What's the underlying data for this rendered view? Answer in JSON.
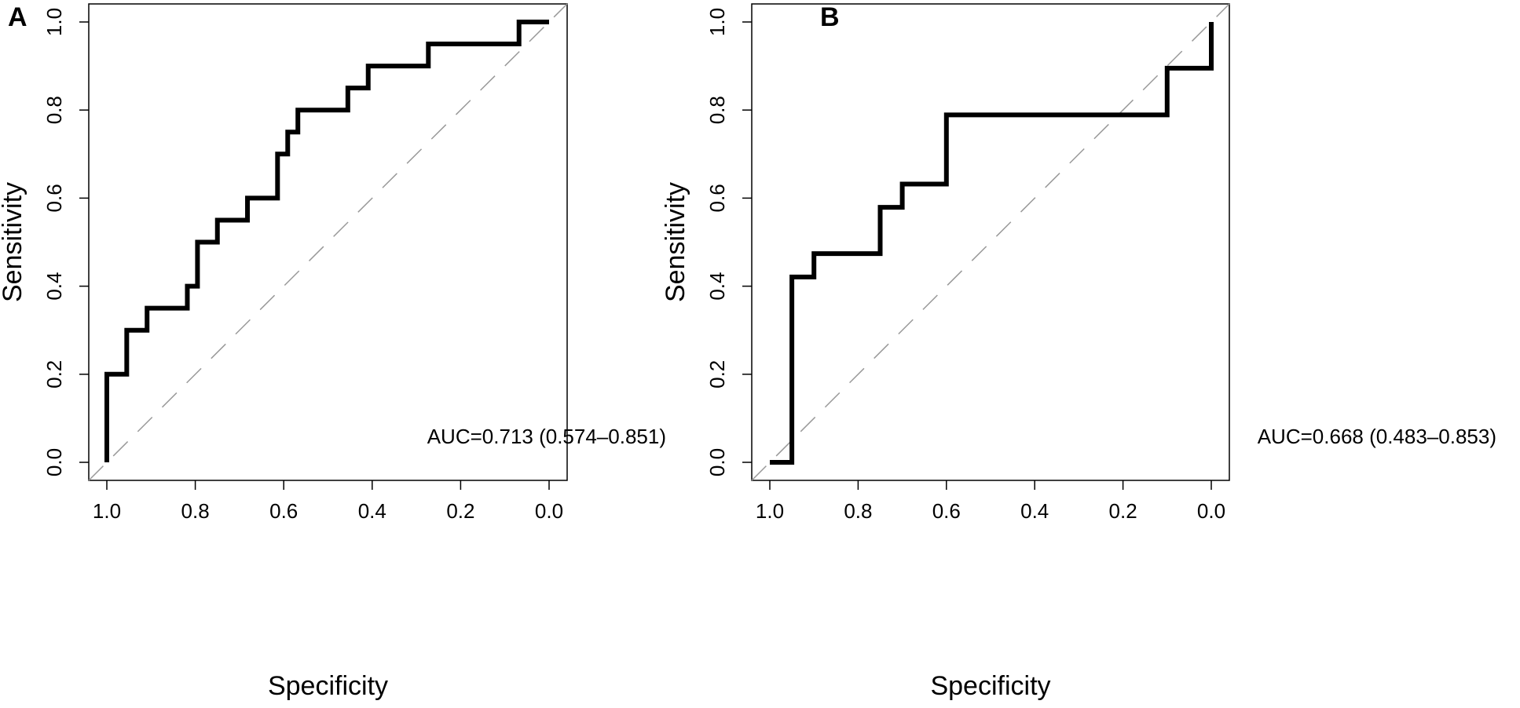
{
  "chart_data": [
    {
      "type": "line",
      "panel": "A",
      "title": "",
      "xlabel": "Specificity",
      "ylabel": "Sensitivity",
      "xlim": [
        1.0,
        0.0
      ],
      "ylim": [
        0.0,
        1.0
      ],
      "x_reversed": true,
      "xticks": [
        "1.0",
        "0.8",
        "0.6",
        "0.4",
        "0.2",
        "0.0"
      ],
      "yticks": [
        "0.0",
        "0.2",
        "0.4",
        "0.6",
        "0.8",
        "1.0"
      ],
      "grid": false,
      "reference_line": "diagonal (dashed, gray)",
      "annotation": "AUC=0.713 (0.574–0.851)",
      "series": [
        {
          "name": "ROC",
          "points": [
            {
              "specificity": 1.0,
              "sensitivity": 0.0
            },
            {
              "specificity": 1.0,
              "sensitivity": 0.2
            },
            {
              "specificity": 0.955,
              "sensitivity": 0.2
            },
            {
              "specificity": 0.955,
              "sensitivity": 0.3
            },
            {
              "specificity": 0.909,
              "sensitivity": 0.3
            },
            {
              "specificity": 0.909,
              "sensitivity": 0.35
            },
            {
              "specificity": 0.818,
              "sensitivity": 0.35
            },
            {
              "specificity": 0.818,
              "sensitivity": 0.4
            },
            {
              "specificity": 0.795,
              "sensitivity": 0.4
            },
            {
              "specificity": 0.795,
              "sensitivity": 0.5
            },
            {
              "specificity": 0.75,
              "sensitivity": 0.5
            },
            {
              "specificity": 0.75,
              "sensitivity": 0.55
            },
            {
              "specificity": 0.682,
              "sensitivity": 0.55
            },
            {
              "specificity": 0.682,
              "sensitivity": 0.6
            },
            {
              "specificity": 0.614,
              "sensitivity": 0.6
            },
            {
              "specificity": 0.614,
              "sensitivity": 0.7
            },
            {
              "specificity": 0.591,
              "sensitivity": 0.7
            },
            {
              "specificity": 0.591,
              "sensitivity": 0.75
            },
            {
              "specificity": 0.568,
              "sensitivity": 0.75
            },
            {
              "specificity": 0.568,
              "sensitivity": 0.8
            },
            {
              "specificity": 0.455,
              "sensitivity": 0.8
            },
            {
              "specificity": 0.455,
              "sensitivity": 0.85
            },
            {
              "specificity": 0.409,
              "sensitivity": 0.85
            },
            {
              "specificity": 0.409,
              "sensitivity": 0.9
            },
            {
              "specificity": 0.273,
              "sensitivity": 0.9
            },
            {
              "specificity": 0.273,
              "sensitivity": 0.95
            },
            {
              "specificity": 0.068,
              "sensitivity": 0.95
            },
            {
              "specificity": 0.068,
              "sensitivity": 1.0
            },
            {
              "specificity": 0.0,
              "sensitivity": 1.0
            }
          ]
        }
      ]
    },
    {
      "type": "line",
      "panel": "B",
      "title": "",
      "xlabel": "Specificity",
      "ylabel": "Sensitivity",
      "xlim": [
        1.0,
        0.0
      ],
      "ylim": [
        0.0,
        1.0
      ],
      "x_reversed": true,
      "xticks": [
        "1.0",
        "0.8",
        "0.6",
        "0.4",
        "0.2",
        "0.0"
      ],
      "yticks": [
        "0.0",
        "0.2",
        "0.4",
        "0.6",
        "0.8",
        "1.0"
      ],
      "grid": false,
      "reference_line": "diagonal (dashed, gray)",
      "annotation": "AUC=0.668 (0.483–0.853)",
      "series": [
        {
          "name": "ROC",
          "points": [
            {
              "specificity": 1.0,
              "sensitivity": 0.0
            },
            {
              "specificity": 0.95,
              "sensitivity": 0.0
            },
            {
              "specificity": 0.95,
              "sensitivity": 0.421
            },
            {
              "specificity": 0.9,
              "sensitivity": 0.421
            },
            {
              "specificity": 0.9,
              "sensitivity": 0.474
            },
            {
              "specificity": 0.75,
              "sensitivity": 0.474
            },
            {
              "specificity": 0.75,
              "sensitivity": 0.579
            },
            {
              "specificity": 0.7,
              "sensitivity": 0.579
            },
            {
              "specificity": 0.7,
              "sensitivity": 0.632
            },
            {
              "specificity": 0.6,
              "sensitivity": 0.632
            },
            {
              "specificity": 0.6,
              "sensitivity": 0.789
            },
            {
              "specificity": 0.1,
              "sensitivity": 0.789
            },
            {
              "specificity": 0.1,
              "sensitivity": 0.895
            },
            {
              "specificity": 0.0,
              "sensitivity": 0.895
            },
            {
              "specificity": 0.0,
              "sensitivity": 1.0
            }
          ]
        }
      ]
    }
  ],
  "colors": {
    "curve": "#000000",
    "axes": "#000000",
    "reference": "#999999"
  }
}
